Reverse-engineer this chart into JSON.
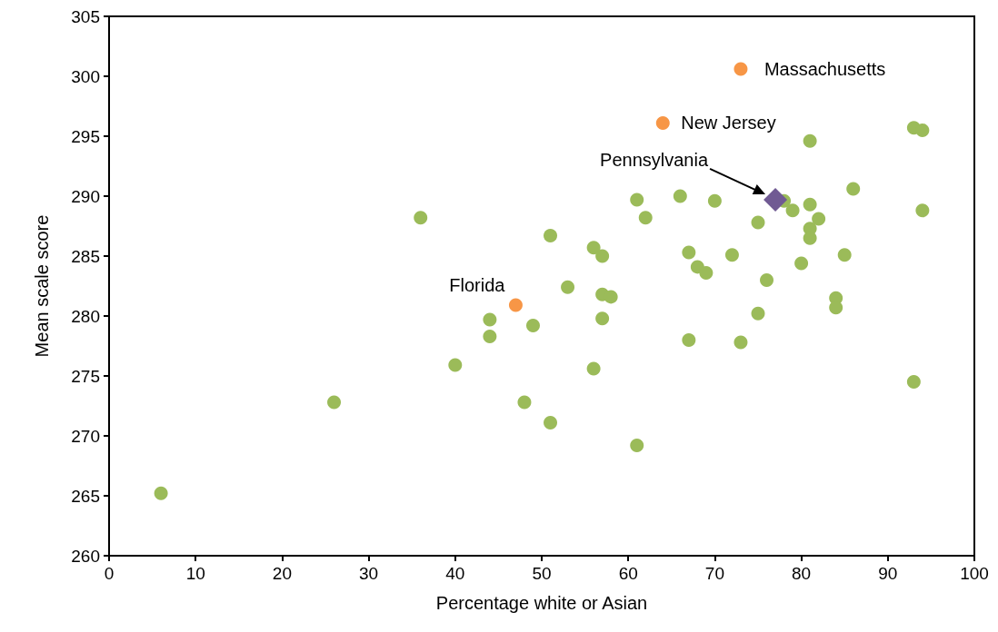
{
  "chart_data": {
    "type": "scatter",
    "xlabel": "Percentage white or Asian",
    "ylabel": "Mean scale score",
    "xlim": [
      0,
      100
    ],
    "xticks": [
      0,
      10,
      20,
      30,
      40,
      50,
      60,
      70,
      80,
      90,
      100
    ],
    "ylim": [
      260,
      305
    ],
    "yticks": [
      260,
      265,
      270,
      275,
      280,
      285,
      290,
      295,
      300,
      305
    ],
    "grid": false,
    "marker": "circle",
    "series": [
      {
        "color": "#9bbb59",
        "x": [
          6,
          26,
          36,
          40,
          44,
          44,
          48,
          49,
          51,
          51,
          53,
          56,
          56,
          57,
          57,
          57,
          58,
          61,
          61,
          62,
          66,
          67,
          67,
          68,
          69,
          70,
          72,
          73,
          75,
          75,
          76,
          78,
          79,
          80,
          81,
          81,
          81,
          81,
          82,
          84,
          84,
          85,
          86,
          93,
          93,
          94,
          94
        ],
        "values": [
          265.2,
          272.8,
          288.2,
          275.9,
          279.7,
          278.3,
          272.8,
          279.2,
          286.7,
          271.1,
          282.4,
          285.7,
          275.6,
          285.0,
          281.8,
          279.8,
          281.6,
          289.7,
          269.2,
          288.2,
          290.0,
          285.3,
          278.0,
          284.1,
          283.6,
          289.6,
          285.1,
          277.8,
          287.8,
          280.2,
          283.0,
          289.6,
          288.8,
          284.4,
          294.6,
          289.3,
          287.3,
          286.5,
          288.1,
          281.5,
          280.7,
          285.1,
          290.6,
          295.7,
          274.5,
          295.5,
          288.8
        ]
      },
      {
        "color": "#f79646",
        "x": [
          47,
          64,
          73
        ],
        "values": [
          280.9,
          296.1,
          300.6
        ]
      },
      {
        "color": "#705a93",
        "marker": "diamond",
        "x": [
          77
        ],
        "values": [
          289.7
        ]
      }
    ],
    "annotations": [
      {
        "text": "Florida",
        "x": 47,
        "y": 280.9
      },
      {
        "text": "New Jersey",
        "x": 64,
        "y": 296.1
      },
      {
        "text": "Massachusetts",
        "x": 73,
        "y": 300.6
      },
      "Pennsylvania"
    ]
  }
}
